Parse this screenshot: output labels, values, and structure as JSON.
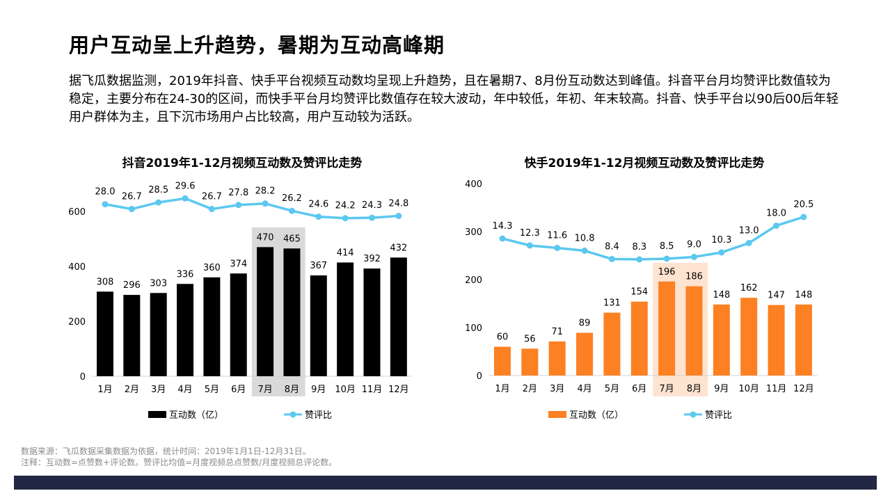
{
  "title": "用户互动呈上升趋势，暑期为互动高峰期",
  "description": "据飞瓜数据监测，2019年抖音、快手平台视频互动数均呈现上升趋势，且在暑期7、8月份互动数达到峰值。抖音平台月均赞评比数值较为稳定，主要分布在24-30的区间，而快手平台月均赞评比数值存在较大波动，年中较低，年初、年末较高。抖音、快手平台以90后00后年轻用户群体为主，且下沉市场用户占比较高，用户互动较为活跃。",
  "notes": {
    "source": "数据来源：飞瓜数据采集数据为依据，统计时间：2019年1月1日-12月31日。",
    "remark": "注释：互动数=点赞数+评论数。赞评比均值=月度视频总点赞数/月度视频总评论数。"
  },
  "chart_data": [
    {
      "type": "bar+line",
      "title": "抖音2019年1-12月视频互动数及赞评比走势",
      "categories": [
        "1月",
        "2月",
        "3月",
        "4月",
        "5月",
        "6月",
        "7月",
        "8月",
        "9月",
        "10月",
        "11月",
        "12月"
      ],
      "series": [
        {
          "name": "互动数（亿）",
          "type": "bar",
          "color": "#000000",
          "values": [
            308,
            296,
            303,
            336,
            360,
            374,
            470,
            465,
            367,
            414,
            392,
            432
          ]
        },
        {
          "name": "赞评比",
          "type": "line",
          "color": "#5bc8f0",
          "values": [
            28.0,
            26.7,
            28.5,
            29.6,
            26.7,
            27.8,
            28.2,
            26.2,
            24.6,
            24.2,
            24.3,
            24.8
          ]
        }
      ],
      "yticks": [
        0,
        200,
        400,
        600
      ],
      "ylim": [
        0,
        600
      ],
      "highlight": [
        "7月",
        "8月"
      ],
      "highlight_color": "#d9d9d9",
      "legend": "bottom",
      "grid": false
    },
    {
      "type": "bar+line",
      "title": "快手2019年1-12月视频互动数及赞评比走势",
      "categories": [
        "1月",
        "2月",
        "3月",
        "4月",
        "5月",
        "6月",
        "7月",
        "8月",
        "9月",
        "10月",
        "11月",
        "12月"
      ],
      "series": [
        {
          "name": "互动数（亿）",
          "type": "bar",
          "color": "#fd8023",
          "values": [
            60,
            56,
            71,
            89,
            131,
            154,
            196,
            186,
            148,
            162,
            147,
            148
          ]
        },
        {
          "name": "赞评比",
          "type": "line",
          "color": "#5bc8f0",
          "values": [
            14.3,
            12.3,
            11.6,
            10.8,
            8.4,
            8.3,
            8.5,
            9.0,
            10.3,
            13.0,
            18.0,
            20.5
          ]
        }
      ],
      "yticks": [
        0,
        100,
        200,
        300,
        400
      ],
      "ylim": [
        0,
        400
      ],
      "highlight": [
        "7月",
        "8月"
      ],
      "highlight_color": "#fde3d0",
      "legend": "bottom",
      "grid": false
    }
  ]
}
